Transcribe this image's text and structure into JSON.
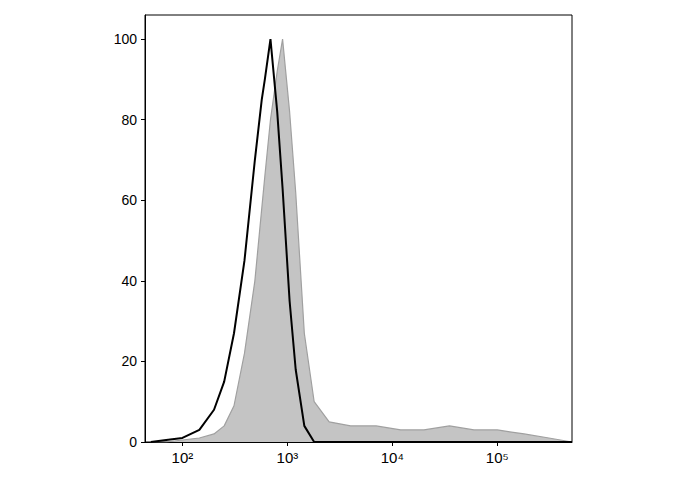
{
  "chart_data": {
    "type": "line",
    "log": "x",
    "grid": false,
    "x": [
      50,
      70,
      100,
      145,
      200,
      250,
      310,
      390,
      490,
      570,
      610,
      690,
      800,
      900,
      1050,
      1200,
      1450,
      1800,
      2500,
      4000,
      7000,
      12000,
      20000,
      35000,
      60000,
      100000,
      180000,
      310000,
      515000
    ],
    "series": [
      {
        "type": "area",
        "color": "#c4c4c4",
        "values": [
          0,
          0,
          0.5,
          1,
          2,
          4,
          9,
          22,
          40,
          58,
          66,
          80,
          92,
          100,
          82,
          62,
          27,
          10,
          5,
          4,
          4,
          3,
          3,
          4,
          3,
          3,
          2,
          1,
          0
        ]
      },
      {
        "type": "line",
        "color": "#000000",
        "values": [
          0,
          0.5,
          1,
          3,
          8,
          15,
          27,
          45,
          70,
          85,
          90,
          100,
          82,
          63,
          35,
          18,
          4,
          0,
          0,
          0,
          0,
          0,
          0,
          0,
          0,
          0,
          0,
          0,
          0
        ]
      }
    ],
    "xlim": [
      44,
      515000
    ],
    "xticks": [
      {
        "value": 100,
        "label": "10²"
      },
      {
        "value": 1000,
        "label": "10³"
      },
      {
        "value": 10000,
        "label": "10⁴"
      },
      {
        "value": 100000,
        "label": "10⁵"
      }
    ],
    "ylim": [
      0,
      106
    ],
    "yticks": [
      0,
      20,
      40,
      60,
      80,
      100
    ]
  }
}
